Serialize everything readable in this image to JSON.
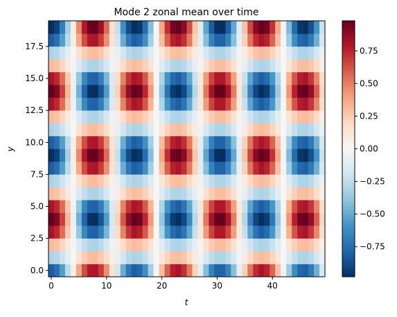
{
  "chart_data": {
    "type": "heatmap",
    "title": "Mode 2 zonal mean over time",
    "xlabel": "t",
    "ylabel": "y",
    "x_range": [
      -0.5,
      49.5
    ],
    "y_range": [
      -0.5,
      19.5
    ],
    "n_t": 50,
    "n_y": 20,
    "value_model": "value(t, y) = cos(2*pi*t/15.24) * cos(pi*(y-4)/5)",
    "x_ticks": [
      {
        "value": 0,
        "label": "0"
      },
      {
        "value": 10,
        "label": "10"
      },
      {
        "value": 20,
        "label": "20"
      },
      {
        "value": 30,
        "label": "30"
      },
      {
        "value": 40,
        "label": "40"
      }
    ],
    "y_ticks": [
      {
        "value": 0.0,
        "label": "0.0"
      },
      {
        "value": 2.5,
        "label": "2.5"
      },
      {
        "value": 5.0,
        "label": "5.0"
      },
      {
        "value": 7.5,
        "label": "7.5"
      },
      {
        "value": 10.0,
        "label": "10.0"
      },
      {
        "value": 12.5,
        "label": "12.5"
      },
      {
        "value": 15.0,
        "label": "15.0"
      },
      {
        "value": 17.5,
        "label": "17.5"
      }
    ],
    "colorbar": {
      "colormap": "RdBu_r",
      "vmin": -0.98,
      "vmax": 0.98,
      "ticks": [
        {
          "value": -0.75,
          "label": "−0.75"
        },
        {
          "value": -0.5,
          "label": "−0.50"
        },
        {
          "value": -0.25,
          "label": "−0.25"
        },
        {
          "value": 0.0,
          "label": "0.00"
        },
        {
          "value": 0.25,
          "label": "0.25"
        },
        {
          "value": 0.5,
          "label": "0.50"
        },
        {
          "value": 0.75,
          "label": "0.75"
        }
      ],
      "colors": [
        "#053061",
        "#2166ac",
        "#4393c3",
        "#92c5de",
        "#d1e5f0",
        "#f7f7f7",
        "#fddbc7",
        "#f4a582",
        "#d6604d",
        "#b2182b",
        "#67001f"
      ]
    }
  }
}
